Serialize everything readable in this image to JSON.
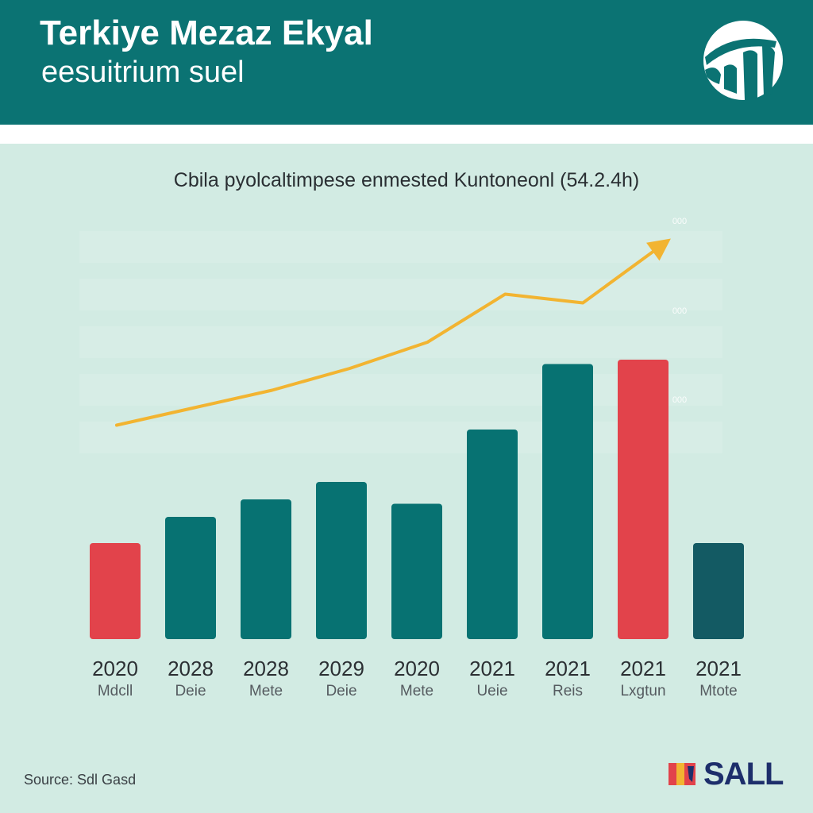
{
  "header": {
    "title": "Terkiye Mezaz Ekyal",
    "subtitle": "eesuitrium suel",
    "logo_icon": "globe-logo-icon"
  },
  "footer": {
    "source": "Source: Sdl Gasd",
    "brand": "SALL",
    "brand_icon": "brand-mark-icon"
  },
  "colors": {
    "header_bg": "#0b7373",
    "bar_teal": "#077272",
    "bar_red": "#e2434b",
    "bar_dark": "#135a63",
    "trend_line": "#f2b431",
    "background": "#d2ebe3"
  },
  "chart_data": {
    "type": "bar",
    "subtitle": "Cbila pyolcaltimpese enmested Kuntoneonl (54.2.4h)",
    "categories": [
      {
        "year": "2020",
        "label": "Mdcll"
      },
      {
        "year": "2028",
        "label": "Deie"
      },
      {
        "year": "2028",
        "label": "Mete"
      },
      {
        "year": "2029",
        "label": "Deie"
      },
      {
        "year": "2020",
        "label": "Mete"
      },
      {
        "year": "2021",
        "label": "Ueie"
      },
      {
        "year": "2021",
        "label": "Reis"
      },
      {
        "year": "2021",
        "label": "Lxgtun"
      },
      {
        "year": "2021",
        "label": "Mtote"
      }
    ],
    "values": [
      11,
      14,
      16,
      18,
      15.5,
      24,
      31.5,
      32,
      11
    ],
    "bar_colors": [
      "red",
      "teal",
      "teal",
      "teal",
      "teal",
      "teal",
      "teal",
      "red",
      "dark"
    ],
    "trend_line": {
      "color": "#f2b431",
      "values": [
        24.5,
        26.5,
        28.5,
        31,
        34,
        39.5,
        38.5,
        45
      ],
      "arrow": true
    },
    "y_tick_labels": [
      "000",
      "000",
      "000"
    ],
    "ylim": [
      0,
      50
    ],
    "grid": true,
    "legend": "none"
  }
}
